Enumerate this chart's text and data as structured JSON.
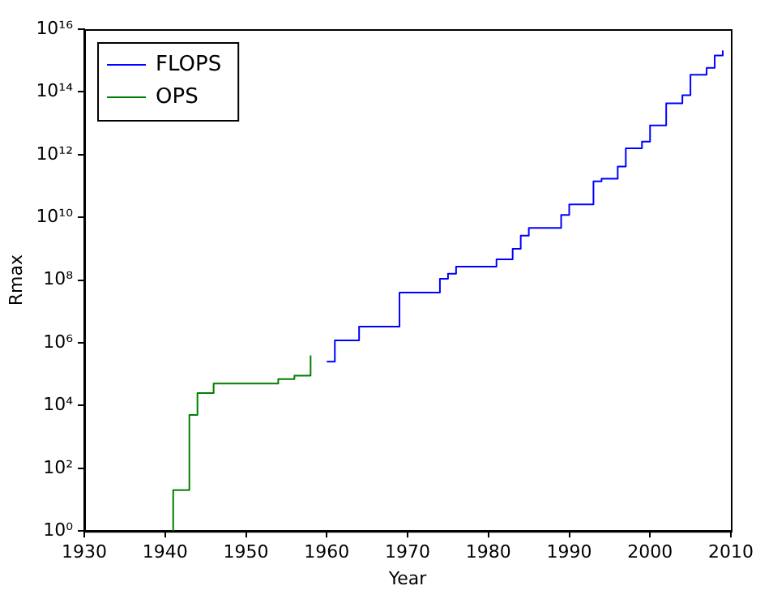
{
  "chart_data": {
    "type": "step",
    "xlabel": "Year",
    "ylabel": "Rmax",
    "log": "y",
    "legend": "top left",
    "grid": false,
    "xlim": [
      1930,
      2010
    ],
    "xticks": [
      1930,
      1940,
      1950,
      1960,
      1970,
      1980,
      1990,
      2000,
      2010
    ],
    "ylim": [
      1,
      1e+16
    ],
    "yticks": [
      {
        "value": 1,
        "label": "10⁰"
      },
      {
        "value": 100,
        "label": "10²"
      },
      {
        "value": 10000,
        "label": "10⁴"
      },
      {
        "value": 1000000,
        "label": "10⁶"
      },
      {
        "value": 100000000,
        "label": "10⁸"
      },
      {
        "value": 10000000000,
        "label": "10¹⁰"
      },
      {
        "value": 1000000000000,
        "label": "10¹²"
      },
      {
        "value": 100000000000000,
        "label": "10¹⁴"
      },
      {
        "value": 10000000000000000,
        "label": "10¹⁶"
      }
    ],
    "series": [
      {
        "name": "FLOPS",
        "color": "#0000ff",
        "x": [
          1960,
          1961,
          1964,
          1969,
          1974,
          1975,
          1976,
          1981,
          1983,
          1984,
          1985,
          1989,
          1990,
          1993,
          1994,
          1996,
          1997,
          1999,
          2000,
          2002,
          2004,
          2005,
          2007,
          2008,
          2009
        ],
        "values": [
          250000,
          1200000,
          3300000,
          40000000,
          110000000,
          160000000,
          270000000,
          460000000,
          1000000000,
          2600000000,
          4600000000,
          12000000000,
          26000000000,
          140000000000,
          170000000000,
          420000000000,
          1600000000000,
          2600000000000,
          8500000000000,
          43000000000000,
          78000000000000,
          350000000000000,
          580000000000000,
          1450000000000000,
          2100000000000000
        ]
      },
      {
        "name": "OPS",
        "color": "#008000",
        "x": [
          1941,
          1941,
          1943,
          1944,
          1946,
          1954,
          1956,
          1958
        ],
        "values": [
          1,
          20,
          5000,
          25000,
          50000,
          70000,
          90000,
          400000
        ]
      }
    ]
  }
}
